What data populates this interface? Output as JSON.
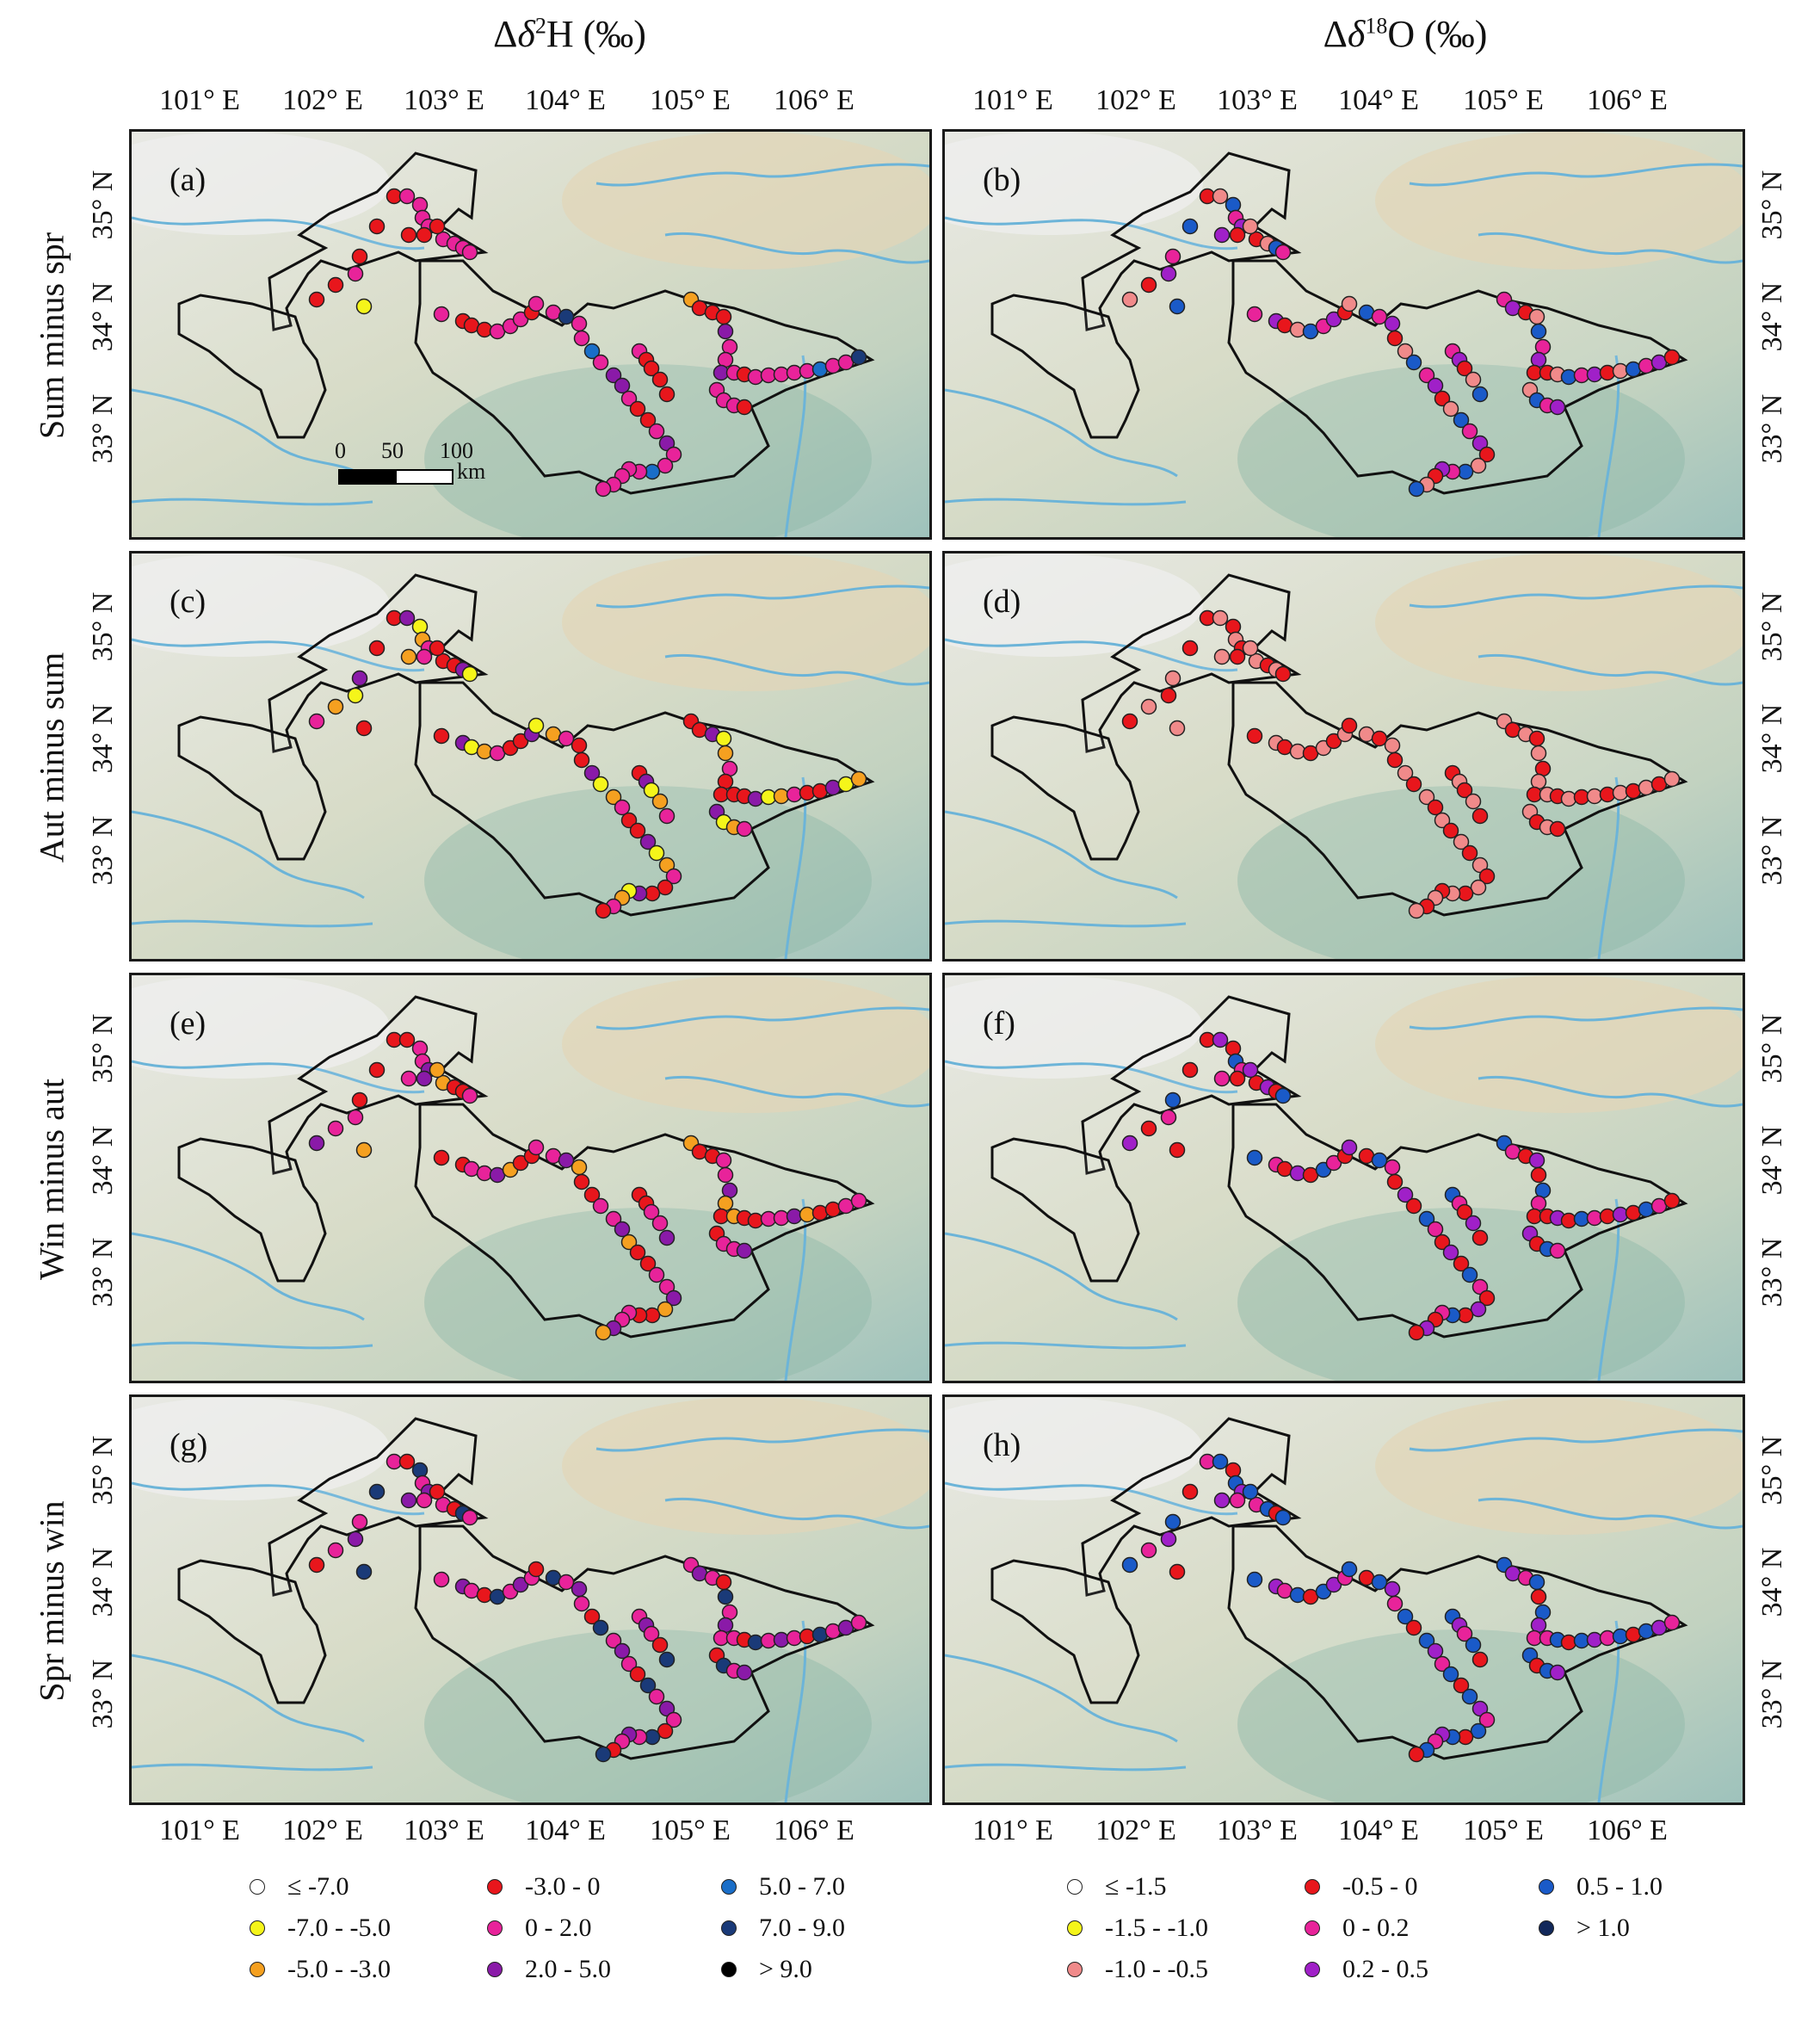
{
  "titles": {
    "left_prefix": "Δ",
    "left_sym": "δ",
    "left_sup": "2",
    "left_suffix": "H (‰)",
    "right_prefix": "Δ",
    "right_sym": "δ",
    "right_sup": "18",
    "right_suffix": "O (‰)"
  },
  "row_labels": [
    "Sum minus spr",
    "Aut minus sum",
    "Win minus aut",
    "Spr minus win"
  ],
  "panel_labels": [
    "(a)",
    "(b)",
    "(c)",
    "(d)",
    "(e)",
    "(f)",
    "(g)",
    "(h)"
  ],
  "x_ticks": [
    "101° E",
    "102° E",
    "103° E",
    "104° E",
    "105° E",
    "106° E"
  ],
  "y_ticks": [
    "35° N",
    "34° N",
    "33° N"
  ],
  "scale_bar": {
    "labels": [
      "0",
      "50",
      "100"
    ],
    "unit": "km"
  },
  "legend_h": [
    {
      "label": "≤ -7.0",
      "color": "#ffffff"
    },
    {
      "label": "-7.0 - -5.0",
      "color": "#f5f51a"
    },
    {
      "label": "-5.0 - -3.0",
      "color": "#f5a020"
    },
    {
      "label": "-3.0 - 0",
      "color": "#e8161c"
    },
    {
      "label": "0 - 2.0",
      "color": "#e8239a"
    },
    {
      "label": "2.0 - 5.0",
      "color": "#8a1aa8"
    },
    {
      "label": "5.0 - 7.0",
      "color": "#1a6ec8"
    },
    {
      "label": "7.0 - 9.0",
      "color": "#1a3a78"
    },
    {
      "label": "> 9.0",
      "color": "#000000"
    }
  ],
  "legend_o": [
    {
      "label": "≤ -1.5",
      "color": "#ffffff"
    },
    {
      "label": "-1.5 - -1.0",
      "color": "#f5f51a"
    },
    {
      "label": "-1.0 - -0.5",
      "color": "#f08a8a"
    },
    {
      "label": "-0.5 - 0",
      "color": "#e8161c"
    },
    {
      "label": "0 - 0.2",
      "color": "#e8239a"
    },
    {
      "label": "0.2 - 0.5",
      "color": "#a020c8"
    },
    {
      "label": "0.5 - 1.0",
      "color": "#1a5ac8"
    },
    {
      "label": "> 1.0",
      "color": "#12285a"
    }
  ]
}
